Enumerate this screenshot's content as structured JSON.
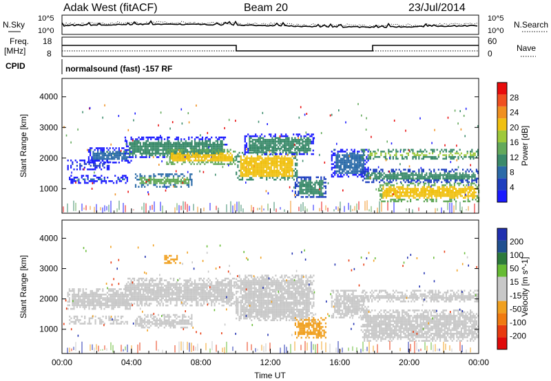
{
  "header": {
    "station": "Adak West (fitACF)",
    "beam": "Beam 20",
    "date": "23/Jul/2014"
  },
  "noise_panel": {
    "left_label": "N.Sky",
    "right_label": "N.Search",
    "top_tick": "10^5",
    "bottom_tick": "10^0"
  },
  "freq_panel": {
    "left_label_line1": "Freq.",
    "left_label_line2": "[MHz]",
    "left_ticks": [
      "18",
      "8"
    ],
    "right_label": "Nave",
    "right_ticks": [
      "60",
      "0"
    ]
  },
  "cpid_panel": {
    "label": "CPID",
    "program": "normalsound (fast) -157 RF"
  },
  "colors": {
    "power_scale": [
      "#1a1aff",
      "#1e3fbf",
      "#2a6aa8",
      "#3a8a6a",
      "#63a95a",
      "#9ec93a",
      "#f0c010",
      "#f09020",
      "#f05020",
      "#e80c0c"
    ],
    "velocity_scale": [
      "#2030b0",
      "#205090",
      "#2c7a3a",
      "#66bb33",
      "#c8c8c8",
      "#c8c8c8",
      "#f0a020",
      "#f07a10",
      "#e83a10",
      "#e00a0a"
    ],
    "ground_scatter": "#c8c8c8"
  },
  "chart_data": [
    {
      "type": "heatmap",
      "name": "power",
      "ylabel": "Slant Range [km]",
      "y_ticks": [
        1000,
        2000,
        3000,
        4000
      ],
      "ylim": [
        200,
        4600
      ],
      "xlim": [
        0,
        24
      ],
      "colorbar": {
        "label": "Power [dB]",
        "ticks": [
          4,
          8,
          12,
          16,
          20,
          24,
          28
        ],
        "range": [
          0,
          32
        ]
      },
      "regions": [
        {
          "t0": 0.3,
          "t1": 2.8,
          "r0": 1650,
          "r1": 1950,
          "value": 5
        },
        {
          "t0": 1.5,
          "t1": 4.0,
          "r0": 1850,
          "r1": 2350,
          "value": 6
        },
        {
          "t0": 0.4,
          "t1": 3.8,
          "r0": 1200,
          "r1": 1450,
          "value": 7
        },
        {
          "t0": 3.6,
          "t1": 9.5,
          "r0": 2000,
          "r1": 2700,
          "value": 9
        },
        {
          "t0": 6.0,
          "t1": 10.0,
          "r0": 1800,
          "r1": 2300,
          "value": 21
        },
        {
          "t0": 4.2,
          "t1": 7.5,
          "r0": 1050,
          "r1": 1500,
          "value": 14
        },
        {
          "t0": 10.0,
          "t1": 13.5,
          "r0": 1300,
          "r1": 2200,
          "value": 20
        },
        {
          "t0": 10.5,
          "t1": 14.5,
          "r0": 2100,
          "r1": 2800,
          "value": 9
        },
        {
          "t0": 13.4,
          "t1": 15.2,
          "r0": 700,
          "r1": 1400,
          "value": 10
        },
        {
          "t0": 15.5,
          "t1": 17.6,
          "r0": 1400,
          "r1": 2300,
          "value": 7
        },
        {
          "t0": 17.2,
          "t1": 24.0,
          "r0": 2000,
          "r1": 2300,
          "value": 17
        },
        {
          "t0": 17.2,
          "t1": 24.0,
          "r0": 1200,
          "r1": 1650,
          "value": 11
        },
        {
          "t0": 18.2,
          "t1": 24.0,
          "r0": 600,
          "r1": 1200,
          "value": 22
        }
      ],
      "ground_band": {
        "r0": 200,
        "r1": 500,
        "value": 10
      }
    },
    {
      "type": "heatmap",
      "name": "velocity",
      "ylabel": "Slant Range [km]",
      "xlabel": "Time UT",
      "x_ticks": [
        "00:00",
        "04:00",
        "08:00",
        "12:00",
        "16:00",
        "20:00",
        "00:00"
      ],
      "y_ticks": [
        1000,
        2000,
        3000,
        4000
      ],
      "ylim": [
        200,
        4600
      ],
      "xlim": [
        0,
        24
      ],
      "colorbar": {
        "label": "Velocity [m s^-1]",
        "ticks": [
          200,
          100,
          50,
          15,
          -15,
          -50,
          -100,
          -200
        ],
        "range": [
          -250,
          250
        ]
      },
      "regions": [
        {
          "t0": 0.3,
          "t1": 4.0,
          "r0": 1650,
          "r1": 2350,
          "value": 0
        },
        {
          "t0": 0.4,
          "t1": 3.8,
          "r0": 1200,
          "r1": 1450,
          "value": 0
        },
        {
          "t0": 3.6,
          "t1": 10.0,
          "r0": 1800,
          "r1": 2700,
          "value": 0
        },
        {
          "t0": 4.2,
          "t1": 7.5,
          "r0": 1050,
          "r1": 1500,
          "value": 0
        },
        {
          "t0": 10.0,
          "t1": 14.5,
          "r0": 1300,
          "r1": 2800,
          "value": 0
        },
        {
          "t0": 13.4,
          "t1": 15.2,
          "r0": 700,
          "r1": 1400,
          "value": -70
        },
        {
          "t0": 15.5,
          "t1": 17.6,
          "r0": 1400,
          "r1": 2300,
          "value": 30
        },
        {
          "t0": 17.2,
          "t1": 24.0,
          "r0": 1900,
          "r1": 2300,
          "value": 0
        },
        {
          "t0": 17.2,
          "t1": 24.0,
          "r0": 600,
          "r1": 1650,
          "value": 0
        },
        {
          "t0": 5.8,
          "t1": 6.8,
          "r0": 3200,
          "r1": 3450,
          "value": -80
        }
      ],
      "ground_band": {
        "r0": 200,
        "r1": 500,
        "value": 0
      }
    }
  ]
}
